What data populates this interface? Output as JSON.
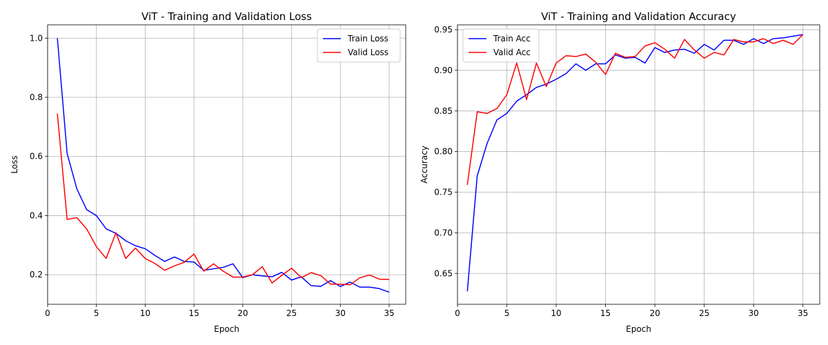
{
  "chart_data": [
    {
      "type": "line",
      "title": "ViT - Training and Validation Loss",
      "xlabel": "Epoch",
      "ylabel": "Loss",
      "xlim": [
        0,
        36.7
      ],
      "ylim": [
        0.1,
        1.045
      ],
      "xticks": [
        0,
        5,
        10,
        15,
        20,
        25,
        30,
        35
      ],
      "yticks": [
        0.2,
        0.4,
        0.6,
        0.8,
        1.0
      ],
      "ytick_labels": [
        "0.2",
        "0.4",
        "0.6",
        "0.8",
        "1.0"
      ],
      "grid": true,
      "legend_position": "top-right",
      "x": [
        1,
        2,
        3,
        4,
        5,
        6,
        7,
        8,
        9,
        10,
        11,
        12,
        13,
        14,
        15,
        16,
        17,
        18,
        19,
        20,
        21,
        22,
        23,
        24,
        25,
        26,
        27,
        28,
        29,
        30,
        31,
        32,
        33,
        34,
        35
      ],
      "series": [
        {
          "name": "Train Loss",
          "color": "#0000ff",
          "values": [
            1.0,
            0.61,
            0.49,
            0.42,
            0.4,
            0.355,
            0.34,
            0.315,
            0.298,
            0.288,
            0.265,
            0.245,
            0.26,
            0.245,
            0.243,
            0.215,
            0.22,
            0.225,
            0.237,
            0.19,
            0.2,
            0.196,
            0.193,
            0.208,
            0.182,
            0.193,
            0.163,
            0.161,
            0.18,
            0.16,
            0.175,
            0.158,
            0.158,
            0.153,
            0.141
          ]
        },
        {
          "name": "Valid Loss",
          "color": "#ff0000",
          "values": [
            0.745,
            0.387,
            0.393,
            0.355,
            0.295,
            0.255,
            0.342,
            0.255,
            0.29,
            0.255,
            0.238,
            0.215,
            0.23,
            0.242,
            0.27,
            0.212,
            0.237,
            0.212,
            0.192,
            0.192,
            0.2,
            0.227,
            0.172,
            0.198,
            0.222,
            0.19,
            0.207,
            0.197,
            0.168,
            0.168,
            0.166,
            0.19,
            0.199,
            0.185,
            0.184
          ]
        }
      ]
    },
    {
      "type": "line",
      "title": "ViT - Training and Validation Accuracy",
      "xlabel": "Epoch",
      "ylabel": "Accuracy",
      "xlim": [
        0,
        36.7
      ],
      "ylim": [
        0.612,
        0.956
      ],
      "xticks": [
        0,
        5,
        10,
        15,
        20,
        25,
        30,
        35
      ],
      "yticks": [
        0.65,
        0.7,
        0.75,
        0.8,
        0.85,
        0.9,
        0.95
      ],
      "ytick_labels": [
        "0.65",
        "0.70",
        "0.75",
        "0.80",
        "0.85",
        "0.90",
        "0.95"
      ],
      "grid": true,
      "legend_position": "top-left",
      "x": [
        1,
        2,
        3,
        4,
        5,
        6,
        7,
        8,
        9,
        10,
        11,
        12,
        13,
        14,
        15,
        16,
        17,
        18,
        19,
        20,
        21,
        22,
        23,
        24,
        25,
        26,
        27,
        28,
        29,
        30,
        31,
        32,
        33,
        34,
        35
      ],
      "series": [
        {
          "name": "Train Acc",
          "color": "#0000ff",
          "values": [
            0.628,
            0.77,
            0.81,
            0.839,
            0.847,
            0.862,
            0.87,
            0.879,
            0.883,
            0.889,
            0.896,
            0.908,
            0.9,
            0.908,
            0.908,
            0.919,
            0.915,
            0.916,
            0.909,
            0.928,
            0.922,
            0.925,
            0.926,
            0.921,
            0.932,
            0.925,
            0.937,
            0.937,
            0.932,
            0.939,
            0.933,
            0.939,
            0.94,
            0.942,
            0.944
          ]
        },
        {
          "name": "Valid Acc",
          "color": "#ff0000",
          "values": [
            0.759,
            0.849,
            0.847,
            0.853,
            0.87,
            0.909,
            0.864,
            0.909,
            0.88,
            0.909,
            0.918,
            0.917,
            0.92,
            0.91,
            0.895,
            0.921,
            0.916,
            0.917,
            0.93,
            0.934,
            0.926,
            0.915,
            0.938,
            0.925,
            0.915,
            0.922,
            0.919,
            0.938,
            0.935,
            0.935,
            0.939,
            0.933,
            0.937,
            0.932,
            0.944
          ]
        }
      ]
    }
  ]
}
